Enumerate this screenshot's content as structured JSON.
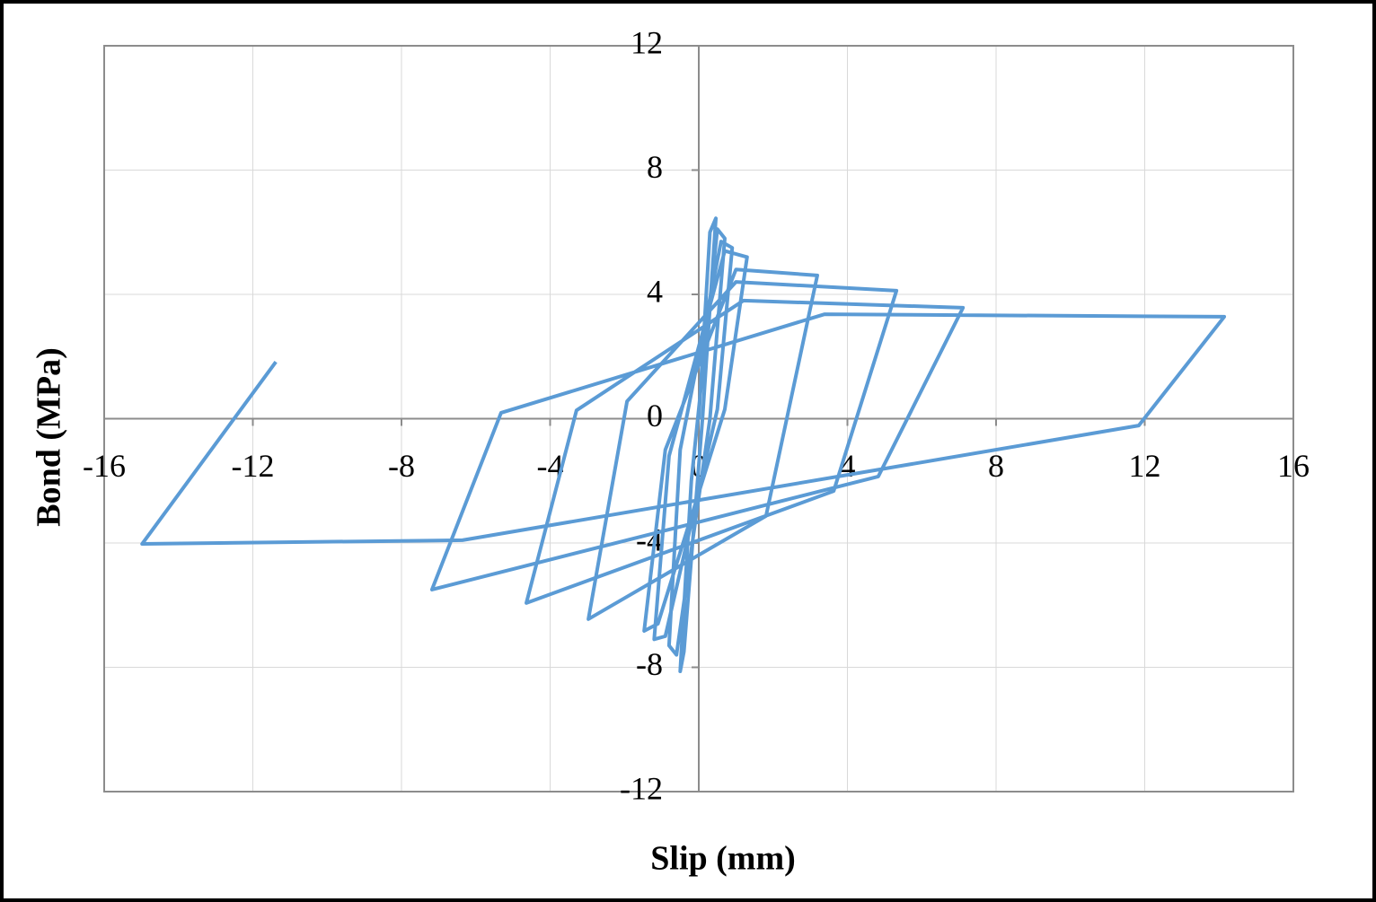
{
  "chart_data": {
    "type": "line",
    "x_label": "Slip (mm)",
    "y_label": "Bond (MPa)",
    "xlim": [
      -16,
      16
    ],
    "ylim": [
      -12,
      12
    ],
    "xticks": [
      -16,
      -12,
      -8,
      -4,
      0,
      4,
      8,
      12,
      16
    ],
    "yticks": [
      -12,
      -8,
      -4,
      0,
      4,
      8,
      12
    ],
    "grid": true,
    "x": [
      0,
      0.3,
      0.46,
      0.1,
      -0.4,
      -0.5,
      -0.2,
      0.5,
      0.7,
      0.3,
      -0.6,
      -0.8,
      -0.5,
      0.6,
      0.9,
      0.5,
      -0.9,
      -1.2,
      -0.8,
      0.7,
      1.3,
      0.7,
      -1.1,
      -1.47,
      -0.9,
      1.0,
      3.19,
      1.81,
      -2.97,
      -1.93,
      1.0,
      5.32,
      3.63,
      -4.64,
      -3.29,
      1.2,
      7.11,
      4.83,
      -7.18,
      -5.32,
      3.38,
      14.14,
      11.84,
      -6.36,
      -14.98,
      -11.38
    ],
    "series": [
      {
        "color": "#5b9bd5",
        "values": [
          0,
          6.0,
          6.45,
          0,
          -7.5,
          -8.13,
          -2,
          6.1,
          5.8,
          0,
          -7.6,
          -7.3,
          -1,
          5.7,
          5.5,
          0.3,
          -7.0,
          -7.1,
          -1.2,
          5.4,
          5.2,
          0.3,
          -6.6,
          -6.83,
          -1.0,
          4.8,
          4.61,
          -3.13,
          -6.45,
          0.56,
          4.4,
          4.12,
          -2.33,
          -5.93,
          0.27,
          3.8,
          3.57,
          -1.86,
          -5.5,
          0.19,
          3.36,
          3.28,
          -0.22,
          -3.91,
          -4.03,
          1.83
        ]
      }
    ]
  }
}
